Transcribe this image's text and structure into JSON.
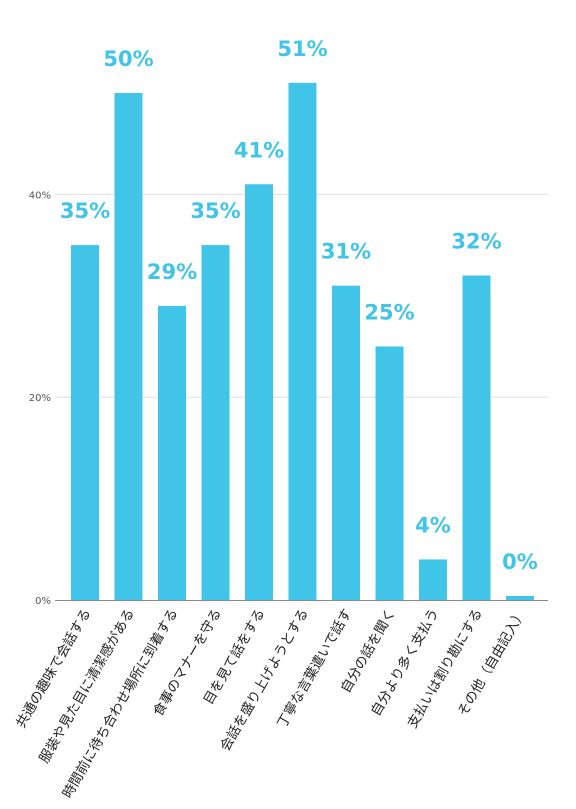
{
  "chart_data": {
    "type": "bar",
    "categories": [
      "共通の趣味で会話する",
      "服装や見た目に清潔感がある",
      "時間前に待ち合わせ場所に到着する",
      "食事のマナーを守る",
      "目を見て話をする",
      "会話を盛り上げようとする",
      "丁寧な言葉遣いで話す",
      "自分の話を聞く",
      "自分より多く支払う",
      "支払いは割り勘にする",
      "その他（自由記入）"
    ],
    "values": [
      35,
      50,
      29,
      35,
      41,
      51,
      31,
      25,
      4,
      32,
      0
    ],
    "value_labels": [
      "35%",
      "50%",
      "29%",
      "35%",
      "41%",
      "51%",
      "31%",
      "25%",
      "4%",
      "32%",
      "0%"
    ],
    "ylim": [
      0,
      60
    ],
    "yticks": [
      0,
      20,
      40
    ],
    "ytick_labels": [
      "0%",
      "20%",
      "40%"
    ],
    "grid": true,
    "colors": {
      "bar": "#40c4e8",
      "label": "#40c4e8",
      "grid": "#e0e0e0",
      "axis": "#888888"
    }
  }
}
